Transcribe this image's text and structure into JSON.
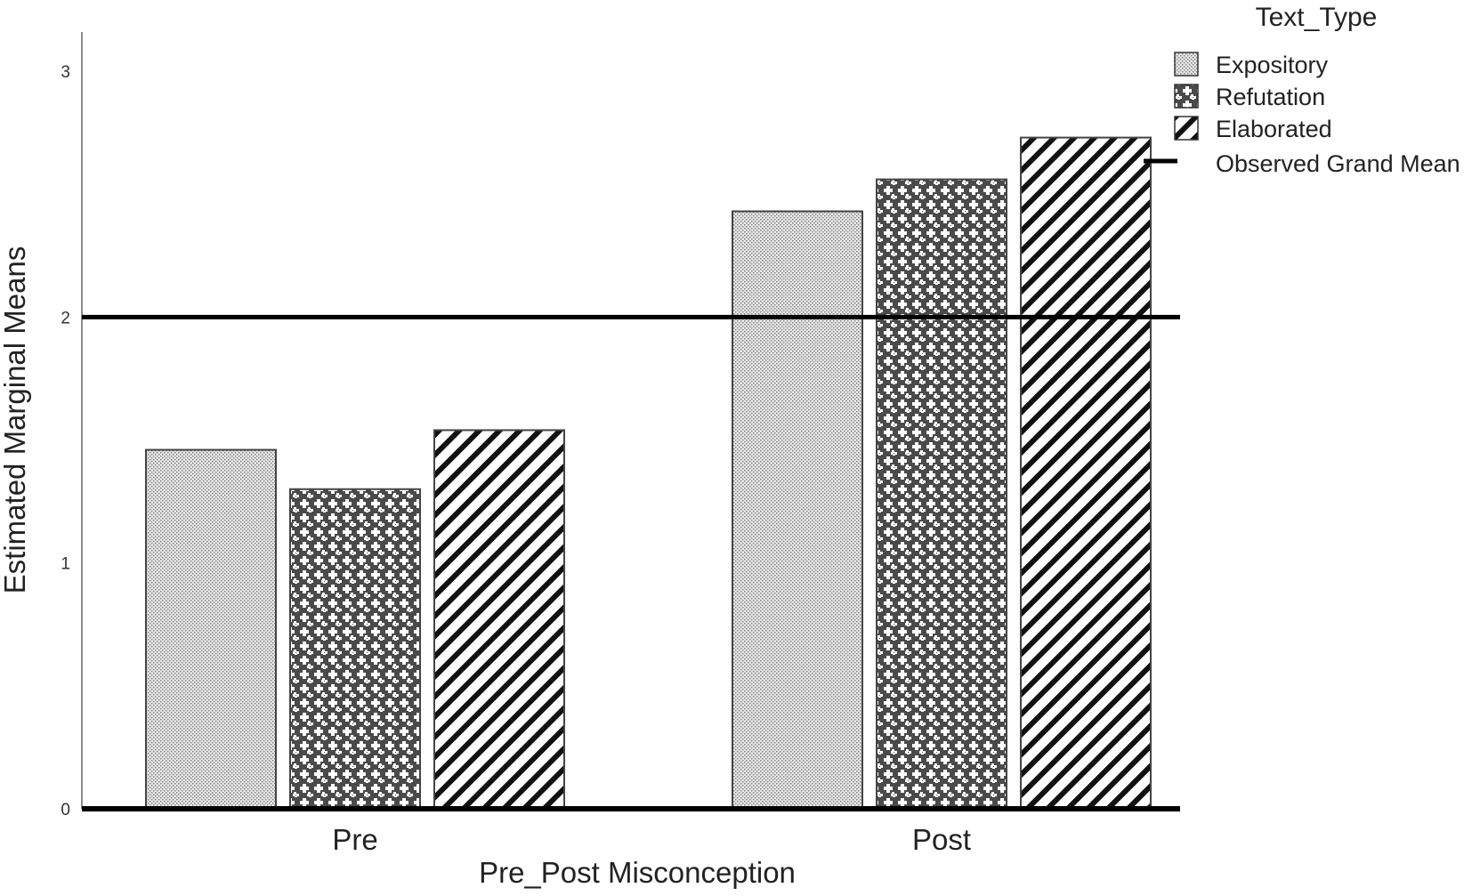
{
  "chart_data": {
    "type": "bar",
    "xlabel": "Pre_Post Misconception",
    "ylabel": "Estimated Marginal Means",
    "categories": [
      "Pre",
      "Post"
    ],
    "ylim": [
      0,
      3.1
    ],
    "yticks": [
      0,
      1,
      2,
      3
    ],
    "grid": false,
    "legend": {
      "title": "Text_Type",
      "placement": "top-right",
      "reference_line_label": "Observed Grand Mean"
    },
    "reference_line": {
      "label": "Observed Grand Mean",
      "value": 2.0
    },
    "series": [
      {
        "name": "Expository",
        "values": [
          1.46,
          2.43
        ],
        "pattern": "dots"
      },
      {
        "name": "Refutation",
        "values": [
          1.3,
          2.56
        ],
        "pattern": "crosses"
      },
      {
        "name": "Elaborated",
        "values": [
          1.54,
          2.73
        ],
        "pattern": "diagonal"
      }
    ]
  }
}
